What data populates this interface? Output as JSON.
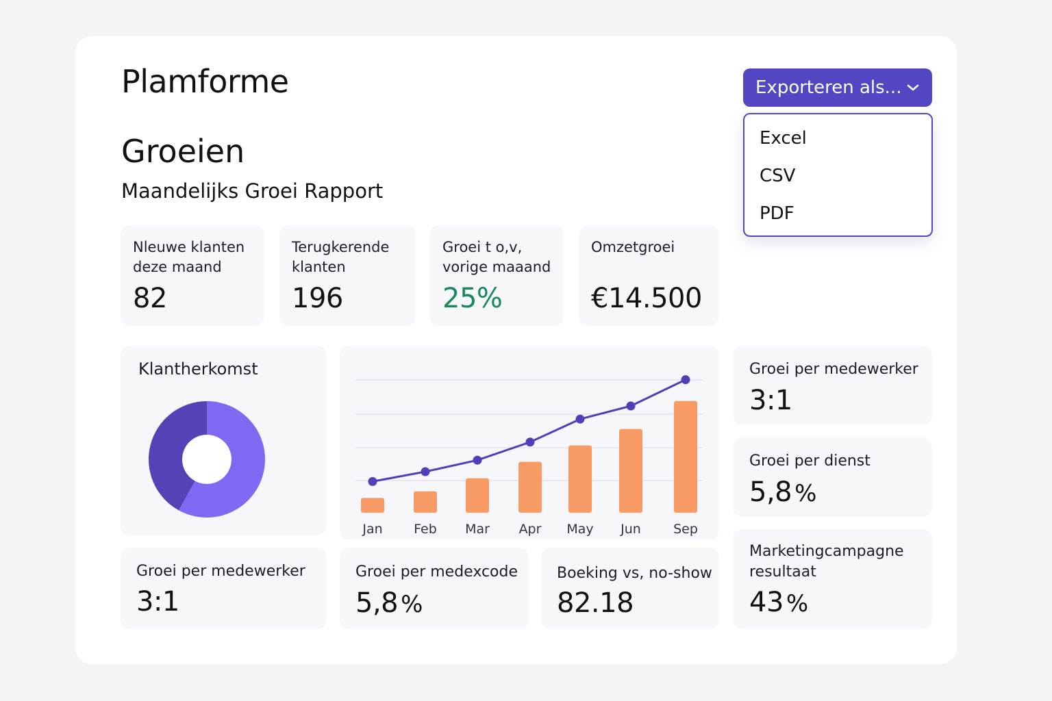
{
  "app": {
    "brand": "Plamforme"
  },
  "page": {
    "title": "Groeien",
    "subtitle": "Maandelijks Groei Rapport"
  },
  "export": {
    "button_label": "Exporteren als...",
    "options": [
      "Excel",
      "CSV",
      "PDF"
    ]
  },
  "kpis": [
    {
      "label": "Nleuwe klanten deze maand",
      "value": "82"
    },
    {
      "label": "Terugkerende klanten",
      "value": "196"
    },
    {
      "label": "Groei t o,v, vorige maaand",
      "value": "25%"
    },
    {
      "label": "Omzetgroei",
      "value": "€14.500"
    }
  ],
  "origin": {
    "title": "Klantherkomst",
    "slices": [
      0.58,
      0.42
    ]
  },
  "side_stats": [
    {
      "label": "Groei per medewerker",
      "value": "3:1",
      "unit": ""
    },
    {
      "label": "Groei per dienst",
      "value": "5,8",
      "unit": "%"
    },
    {
      "label": "Marketingcampagne resultaat",
      "value": "43",
      "unit": "%"
    }
  ],
  "bottom_stats": [
    {
      "label": "Groei per medewerker",
      "value": "3:1",
      "unit": ""
    },
    {
      "label": "Groei per medexcode",
      "value": "5,8",
      "unit": "%"
    },
    {
      "label": "Boeking vs, no-show",
      "value": "82.18",
      "unit": ""
    }
  ],
  "colors": {
    "accent": "#5446c2",
    "bar": "#f79a63",
    "line": "#4f3fb8",
    "donut_dark": "#5443b6",
    "donut_light": "#8068f3",
    "positive": "#158a5c"
  },
  "chart_data": {
    "type": "bar",
    "categories": [
      "Jan",
      "Feb",
      "Mar",
      "Apr",
      "May",
      "Jun",
      "Sep"
    ],
    "series": [
      {
        "name": "bars",
        "type": "bar",
        "values": [
          9,
          13,
          21,
          31,
          41,
          51,
          68
        ]
      },
      {
        "name": "line",
        "type": "line",
        "values": [
          19,
          25,
          32,
          43,
          57,
          65,
          81
        ]
      }
    ],
    "ylim": [
      0,
      90
    ],
    "grid": true,
    "title": "",
    "xlabel": "",
    "ylabel": ""
  }
}
